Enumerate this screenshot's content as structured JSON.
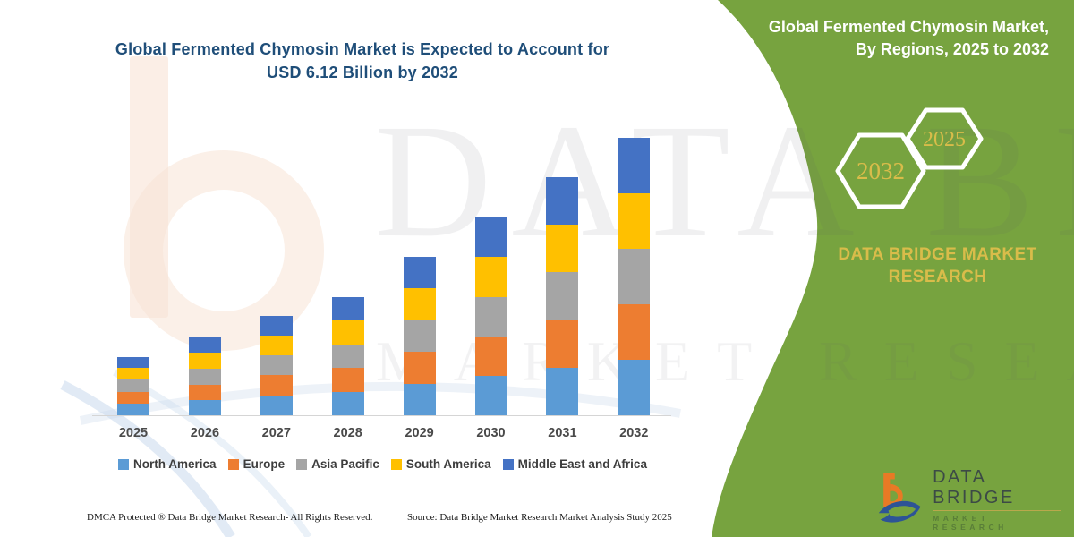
{
  "header": {
    "title_line1": "Global Fermented Chymosin Market is Expected to Account for",
    "title_line2": "USD 6.12 Billion by 2032"
  },
  "side_panel": {
    "title_line1": "Global Fermented Chymosin Market,",
    "title_line2": "By Regions, 2025 to 2032",
    "hexagon_large_label": "2032",
    "hexagon_small_label": "2025",
    "brand_line1": "DATA BRIDGE MARKET",
    "brand_line2": "RESEARCH",
    "panel_color": "#77A33F",
    "accent_gold": "#D9BC4A"
  },
  "watermark": {
    "row1": "DATA BRIDGE",
    "row2": "MARKET RESEARCH"
  },
  "chart_data": {
    "type": "bar",
    "stacked": true,
    "title": "Global Fermented Chymosin Market is Expected to Account for USD 6.12 Billion by 2032",
    "unit": "USD Billion",
    "categories": [
      "2025",
      "2026",
      "2027",
      "2028",
      "2029",
      "2030",
      "2031",
      "2032"
    ],
    "totals": [
      1.28,
      1.72,
      2.19,
      2.61,
      3.49,
      4.36,
      5.25,
      6.12
    ],
    "series": [
      {
        "name": "North America",
        "color": "#5B9BD5",
        "values": [
          0.26,
          0.34,
          0.44,
          0.52,
          0.7,
          0.87,
          1.05,
          1.22
        ]
      },
      {
        "name": "Europe",
        "color": "#ED7D31",
        "values": [
          0.26,
          0.34,
          0.44,
          0.52,
          0.7,
          0.87,
          1.05,
          1.22
        ]
      },
      {
        "name": "Asia Pacific",
        "color": "#A5A5A5",
        "values": [
          0.26,
          0.35,
          0.44,
          0.52,
          0.7,
          0.87,
          1.05,
          1.23
        ]
      },
      {
        "name": "South America",
        "color": "#FFC000",
        "values": [
          0.26,
          0.35,
          0.44,
          0.53,
          0.7,
          0.88,
          1.05,
          1.22
        ]
      },
      {
        "name": "Middle East and Africa",
        "color": "#4472C4",
        "values": [
          0.24,
          0.34,
          0.43,
          0.52,
          0.69,
          0.87,
          1.05,
          1.23
        ]
      }
    ],
    "ylim": [
      0,
      6.5
    ],
    "grid": false,
    "y_axis_visible": false,
    "legend_position": "bottom"
  },
  "brand_logo": {
    "title": "DATA BRIDGE",
    "subtitle": "MARKET RESEARCH"
  },
  "footer": {
    "left": "DMCA Protected ® Data Bridge Market Research-  All Rights Reserved.",
    "right": "Source: Data Bridge Market Research  Market Analysis Study 2025"
  }
}
